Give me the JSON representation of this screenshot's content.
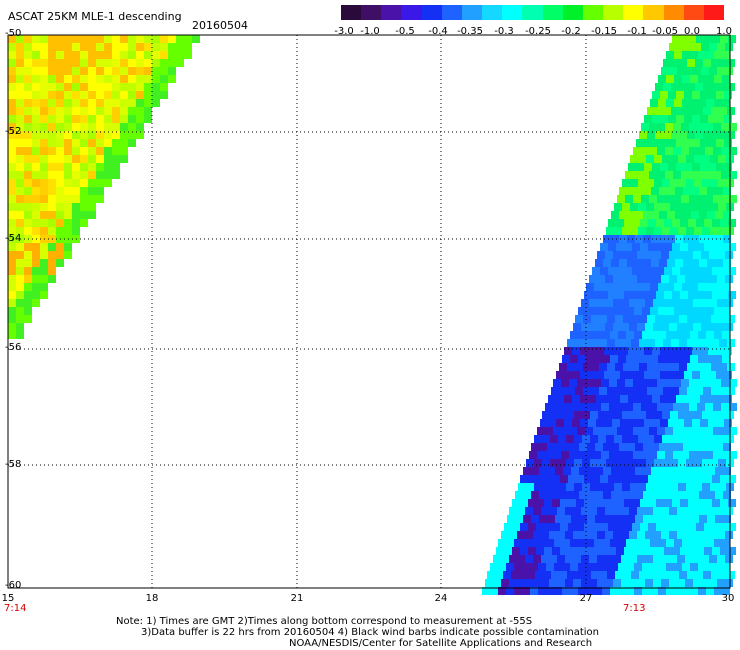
{
  "header": {
    "title": "ASCAT 25KM MLE-1 descending",
    "date": "20160504"
  },
  "colorbar": {
    "colors": [
      "#2a0a3a",
      "#3f0f66",
      "#4a12a8",
      "#3a18e8",
      "#1530f5",
      "#1e62ff",
      "#21a0ff",
      "#14d8ff",
      "#00ffff",
      "#00ffb0",
      "#00ff66",
      "#00f02a",
      "#66ff00",
      "#b8ff00",
      "#ffff00",
      "#ffc800",
      "#ff8c00",
      "#ff4a14",
      "#ff1a1a"
    ],
    "labels": [
      "-3.0",
      "-1.0",
      "-0.5",
      "-0.4",
      "-0.35",
      "-0.3",
      "-0.25",
      "-0.2",
      "-0.15",
      "-0.1",
      "-0.05",
      "0.0",
      "1.0"
    ]
  },
  "map": {
    "y_ticks": [
      "-50",
      "-52",
      "-54",
      "-56",
      "-58",
      "-60"
    ],
    "x_ticks": [
      "15",
      "18",
      "21",
      "24",
      "27",
      "30"
    ],
    "x_range": [
      15,
      30
    ],
    "y_range": [
      -60,
      -50
    ],
    "grid": "dotted",
    "left_swath_dominant": "yellow-green",
    "right_swath_dominant": "green-cyan-blue"
  },
  "times": {
    "left": "7:14",
    "right": "7:13"
  },
  "notes": {
    "line1": "Note: 1) Times are GMT 2)Times along bottom correspond to measurement at -55S",
    "line2": "3)Data buffer is 22 hrs from 20160504 4) Black wind barbs indicate possible contamination",
    "line3": "NOAA/NESDIS/Center for Satellite Applications and Research"
  }
}
